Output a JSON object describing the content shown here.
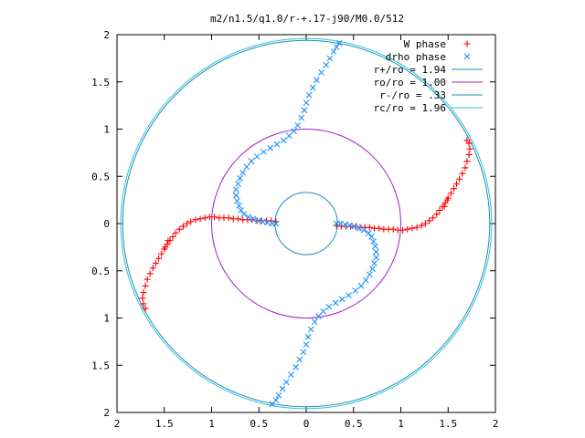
{
  "chart_data": {
    "type": "scatter",
    "title": "m2/n1.5/q1.0/r-+.17-j90/M0.0/512",
    "xlabel": "",
    "ylabel": "",
    "xlim": [
      -2,
      2
    ],
    "ylim": [
      -2,
      2
    ],
    "x_tick_labels": [
      "2",
      "1.5",
      "1",
      "0.5",
      "0",
      "0.5",
      "1",
      "1.5",
      "2"
    ],
    "y_tick_labels": [
      "2",
      "1.5",
      "1",
      "0.5",
      "0",
      "0.5",
      "1",
      "1.5",
      "2"
    ],
    "grid": false,
    "legend_position": "top-right",
    "colors": {
      "w_phase": "#ff0000",
      "drho_phase": "#1e90ff",
      "r_plus": "#1a8fbf",
      "ro": "#a020c8",
      "r_minus": "#1a8fbf",
      "rc": "#30c0d8"
    },
    "circles": [
      {
        "key": "r_plus",
        "label": "r+/ro = 1.94",
        "radius": 1.94
      },
      {
        "key": "ro",
        "label": "ro/ro = 1.00",
        "radius": 1.0
      },
      {
        "key": "r_minus",
        "label": "r-/ro = .33",
        "radius": 0.33
      },
      {
        "key": "rc",
        "label": "rc/ro = 1.96",
        "radius": 1.96
      }
    ],
    "series": [
      {
        "key": "w_phase",
        "name": "W phase",
        "marker": "plus",
        "points": [
          [
            0.32,
            -0.02
          ],
          [
            0.37,
            -0.03
          ],
          [
            0.42,
            -0.03
          ],
          [
            0.47,
            -0.03
          ],
          [
            0.52,
            -0.03
          ],
          [
            0.57,
            -0.04
          ],
          [
            0.62,
            -0.04
          ],
          [
            0.67,
            -0.04
          ],
          [
            0.72,
            -0.05
          ],
          [
            0.77,
            -0.05
          ],
          [
            0.82,
            -0.06
          ],
          [
            0.87,
            -0.06
          ],
          [
            0.92,
            -0.06
          ],
          [
            0.97,
            -0.07
          ],
          [
            1.02,
            -0.07
          ],
          [
            1.07,
            -0.06
          ],
          [
            1.12,
            -0.05
          ],
          [
            1.17,
            -0.04
          ],
          [
            1.22,
            -0.02
          ],
          [
            1.26,
            0.0
          ],
          [
            1.3,
            0.03
          ],
          [
            1.34,
            0.06
          ],
          [
            1.38,
            0.1
          ],
          [
            1.41,
            0.14
          ],
          [
            1.44,
            0.18
          ],
          [
            1.47,
            0.22
          ],
          [
            1.5,
            0.27
          ],
          [
            1.53,
            0.32
          ],
          [
            1.56,
            0.37
          ],
          [
            1.59,
            0.42
          ],
          [
            1.62,
            0.47
          ],
          [
            1.65,
            0.53
          ],
          [
            1.68,
            0.59
          ],
          [
            1.7,
            0.66
          ],
          [
            1.72,
            0.73
          ],
          [
            1.73,
            0.79
          ],
          [
            1.72,
            0.85
          ],
          [
            1.7,
            0.88
          ],
          [
            1.46,
            0.18
          ],
          [
            1.49,
            0.25
          ],
          [
            -0.32,
            0.02
          ],
          [
            -0.37,
            0.03
          ],
          [
            -0.42,
            0.03
          ],
          [
            -0.47,
            0.03
          ],
          [
            -0.52,
            0.03
          ],
          [
            -0.57,
            0.04
          ],
          [
            -0.62,
            0.04
          ],
          [
            -0.67,
            0.04
          ],
          [
            -0.72,
            0.05
          ],
          [
            -0.77,
            0.05
          ],
          [
            -0.82,
            0.06
          ],
          [
            -0.87,
            0.06
          ],
          [
            -0.92,
            0.06
          ],
          [
            -0.97,
            0.07
          ],
          [
            -1.02,
            0.07
          ],
          [
            -1.07,
            0.06
          ],
          [
            -1.12,
            0.05
          ],
          [
            -1.17,
            0.04
          ],
          [
            -1.22,
            0.02
          ],
          [
            -1.26,
            0.0
          ],
          [
            -1.3,
            -0.03
          ],
          [
            -1.34,
            -0.06
          ],
          [
            -1.38,
            -0.1
          ],
          [
            -1.41,
            -0.14
          ],
          [
            -1.44,
            -0.18
          ],
          [
            -1.47,
            -0.22
          ],
          [
            -1.5,
            -0.27
          ],
          [
            -1.53,
            -0.32
          ],
          [
            -1.56,
            -0.37
          ],
          [
            -1.59,
            -0.42
          ],
          [
            -1.62,
            -0.47
          ],
          [
            -1.65,
            -0.53
          ],
          [
            -1.68,
            -0.59
          ],
          [
            -1.7,
            -0.66
          ],
          [
            -1.72,
            -0.73
          ],
          [
            -1.73,
            -0.79
          ],
          [
            -1.72,
            -0.85
          ],
          [
            -1.7,
            -0.9
          ],
          [
            -1.46,
            -0.18
          ],
          [
            -1.49,
            -0.25
          ]
        ]
      },
      {
        "key": "drho_phase",
        "name": "drho phase",
        "marker": "cross",
        "points": [
          [
            -0.32,
            0.0
          ],
          [
            -0.36,
            0.0
          ],
          [
            -0.41,
            0.01
          ],
          [
            -0.46,
            0.02
          ],
          [
            -0.51,
            0.03
          ],
          [
            -0.56,
            0.05
          ],
          [
            -0.61,
            0.07
          ],
          [
            -0.66,
            0.1
          ],
          [
            -0.69,
            0.14
          ],
          [
            -0.71,
            0.19
          ],
          [
            -0.73,
            0.24
          ],
          [
            -0.74,
            0.3
          ],
          [
            -0.74,
            0.36
          ],
          [
            -0.72,
            0.42
          ],
          [
            -0.7,
            0.48
          ],
          [
            -0.67,
            0.54
          ],
          [
            -0.63,
            0.6
          ],
          [
            -0.58,
            0.66
          ],
          [
            -0.52,
            0.71
          ],
          [
            -0.45,
            0.76
          ],
          [
            -0.38,
            0.8
          ],
          [
            -0.31,
            0.84
          ],
          [
            -0.24,
            0.88
          ],
          [
            -0.18,
            0.93
          ],
          [
            -0.13,
            0.98
          ],
          [
            -0.09,
            1.04
          ],
          [
            -0.05,
            1.12
          ],
          [
            -0.02,
            1.2
          ],
          [
            0.0,
            1.28
          ],
          [
            0.03,
            1.36
          ],
          [
            0.07,
            1.44
          ],
          [
            0.11,
            1.52
          ],
          [
            0.16,
            1.6
          ],
          [
            0.21,
            1.68
          ],
          [
            0.25,
            1.75
          ],
          [
            0.29,
            1.82
          ],
          [
            0.32,
            1.87
          ],
          [
            0.35,
            1.91
          ],
          [
            0.32,
            0.0
          ],
          [
            0.36,
            0.0
          ],
          [
            0.41,
            -0.01
          ],
          [
            0.46,
            -0.02
          ],
          [
            0.51,
            -0.03
          ],
          [
            0.56,
            -0.05
          ],
          [
            0.61,
            -0.07
          ],
          [
            0.66,
            -0.1
          ],
          [
            0.69,
            -0.14
          ],
          [
            0.71,
            -0.19
          ],
          [
            0.73,
            -0.24
          ],
          [
            0.74,
            -0.3
          ],
          [
            0.74,
            -0.36
          ],
          [
            0.72,
            -0.42
          ],
          [
            0.7,
            -0.48
          ],
          [
            0.67,
            -0.54
          ],
          [
            0.63,
            -0.6
          ],
          [
            0.58,
            -0.66
          ],
          [
            0.52,
            -0.71
          ],
          [
            0.45,
            -0.76
          ],
          [
            0.38,
            -0.8
          ],
          [
            0.31,
            -0.84
          ],
          [
            0.24,
            -0.88
          ],
          [
            0.18,
            -0.93
          ],
          [
            0.13,
            -0.98
          ],
          [
            0.09,
            -1.04
          ],
          [
            0.05,
            -1.12
          ],
          [
            0.02,
            -1.2
          ],
          [
            0.0,
            -1.28
          ],
          [
            -0.03,
            -1.36
          ],
          [
            -0.07,
            -1.44
          ],
          [
            -0.11,
            -1.52
          ],
          [
            -0.16,
            -1.6
          ],
          [
            -0.21,
            -1.68
          ],
          [
            -0.25,
            -1.75
          ],
          [
            -0.29,
            -1.82
          ],
          [
            -0.32,
            -1.87
          ],
          [
            -0.36,
            -1.91
          ]
        ]
      }
    ]
  }
}
